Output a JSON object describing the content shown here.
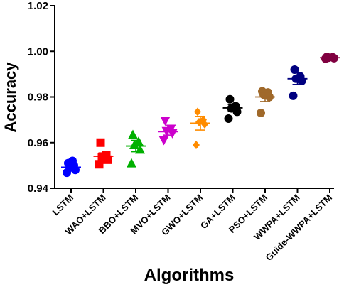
{
  "chart_data": {
    "type": "scatter",
    "title": "",
    "xlabel": "Algorithms",
    "ylabel": "Accuracy",
    "ylim": [
      0.94,
      1.02
    ],
    "yticks": [
      "0.94",
      "0.96",
      "0.98",
      "1.00",
      "1.02"
    ],
    "categories": [
      "LSTM",
      "WAO+LSTM",
      "BBO+LSTM",
      "MVO+LSTM",
      "GWO+LSTM",
      "GA+LSTM",
      "PSO+LSTM",
      "WWPA+LSTM",
      "Guide-WWPA+LSTM"
    ],
    "series": [
      {
        "category": "LSTM",
        "marker": "circle",
        "color": "#0000ff",
        "points": [
          0.9468,
          0.948,
          0.949,
          0.95,
          0.951,
          0.952
        ],
        "mean": 0.9492,
        "error": 0.0008
      },
      {
        "category": "WAO+LSTM",
        "marker": "square",
        "color": "#ff0000",
        "points": [
          0.9505,
          0.9525,
          0.9535,
          0.9545,
          0.96
        ],
        "mean": 0.954,
        "error": 0.0015
      },
      {
        "category": "BBO+LSTM",
        "marker": "triangle-up",
        "color": "#00b000",
        "points": [
          0.951,
          0.957,
          0.959,
          0.9605,
          0.9635
        ],
        "mean": 0.9585,
        "error": 0.0025
      },
      {
        "category": "MVO+LSTM",
        "marker": "triangle-down",
        "color": "#cc00cc",
        "points": [
          0.961,
          0.964,
          0.965,
          0.966,
          0.9695
        ],
        "mean": 0.9648,
        "error": 0.0015
      },
      {
        "category": "GWO+LSTM",
        "marker": "diamond",
        "color": "#ff8c00",
        "points": [
          0.959,
          0.968,
          0.969,
          0.97,
          0.9735
        ],
        "mean": 0.9685,
        "error": 0.003
      },
      {
        "category": "GA+LSTM",
        "marker": "circle",
        "color": "#000000",
        "points": [
          0.9705,
          0.9735,
          0.975,
          0.976,
          0.979
        ],
        "mean": 0.9752,
        "error": 0.0015
      },
      {
        "category": "PSO+LSTM",
        "marker": "circle",
        "color": "#a0692a",
        "points": [
          0.973,
          0.98,
          0.981,
          0.982,
          0.9825
        ],
        "mean": 0.98,
        "error": 0.002
      },
      {
        "category": "WWPA+LSTM",
        "marker": "circle",
        "color": "#000080",
        "points": [
          0.9805,
          0.987,
          0.988,
          0.989,
          0.992
        ],
        "mean": 0.988,
        "error": 0.0025
      },
      {
        "category": "Guide-WWPA+LSTM",
        "marker": "circle",
        "color": "#800040",
        "points": [
          0.9968,
          0.997,
          0.9972,
          0.9974,
          0.9976
        ],
        "mean": 0.9972,
        "error": 0.0003
      }
    ],
    "grid": false,
    "legend": "none"
  }
}
